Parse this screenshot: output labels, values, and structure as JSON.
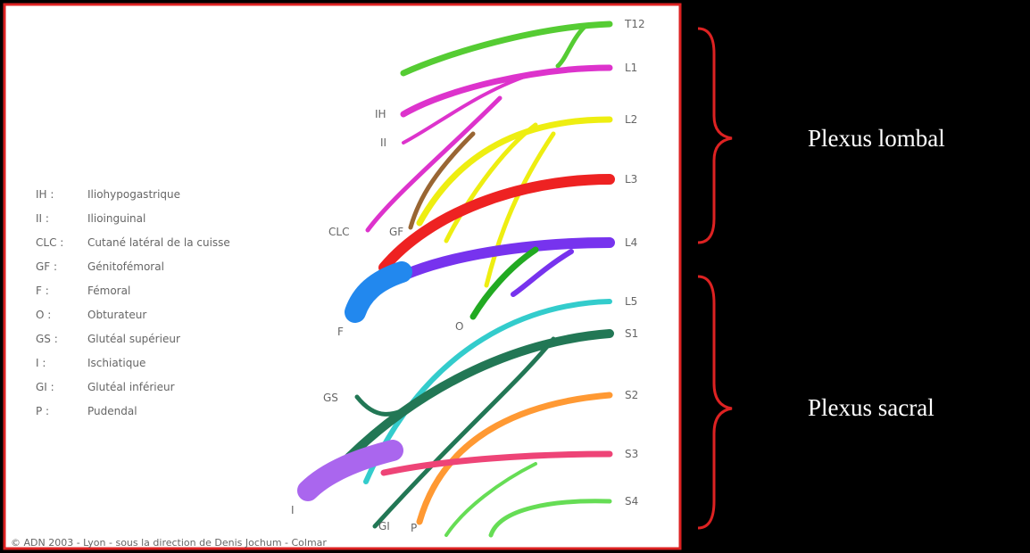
{
  "roots": [
    "T12",
    "L1",
    "L2",
    "L3",
    "L4",
    "L5",
    "S1",
    "S2",
    "S3",
    "S4"
  ],
  "branch_labels": [
    "IH",
    "II",
    "CLC",
    "GF",
    "F",
    "O",
    "GS",
    "I",
    "GI",
    "P"
  ],
  "legend": [
    {
      "abbr": "IH :",
      "name": "Iliohypogastrique"
    },
    {
      "abbr": "II :",
      "name": "Ilioinguinal"
    },
    {
      "abbr": "CLC :",
      "name": "Cutané latéral de la cuisse"
    },
    {
      "abbr": "GF :",
      "name": "Génitofémoral"
    },
    {
      "abbr": "F :",
      "name": "Fémoral"
    },
    {
      "abbr": "O :",
      "name": "Obturateur"
    },
    {
      "abbr": "GS :",
      "name": "Glutéal supérieur"
    },
    {
      "abbr": "I :",
      "name": "Ischiatique"
    },
    {
      "abbr": "GI :",
      "name": "Glutéal inférieur"
    },
    {
      "abbr": "P :",
      "name": "Pudendal"
    }
  ],
  "credit": "© ADN 2003 - Lyon - sous la direction de Denis Jochum - Colmar",
  "groups": [
    "Plexus lombal",
    "Plexus sacral"
  ]
}
